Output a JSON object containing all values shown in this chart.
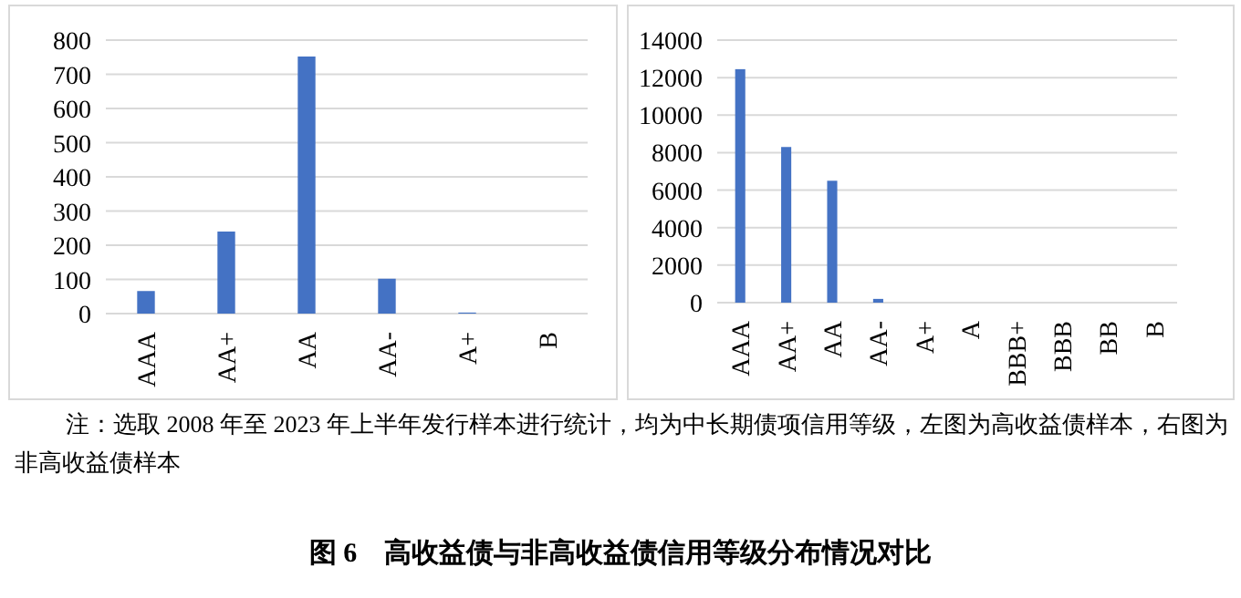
{
  "chart_data": [
    {
      "type": "bar",
      "categories": [
        "AAA",
        "AA+",
        "AA",
        "AA-",
        "A+",
        "B"
      ],
      "values": [
        66,
        240,
        752,
        102,
        3,
        0
      ],
      "color": "#4472c4",
      "ylim": [
        0,
        800
      ],
      "yticks": [
        0,
        100,
        200,
        300,
        400,
        500,
        600,
        700,
        800
      ],
      "grid": "y",
      "annotations": [
        "注：选取 2008 年至 2023 年上半年发行样本进行统计，均为中长期债项信用等级，左图为高收益债样本，右图为非高收益债样本",
        "图 6　高收益债与非高收益债信用等级分布情况对比"
      ]
    },
    {
      "type": "bar",
      "categories": [
        "AAA",
        "AA+",
        "AA",
        "AA-",
        "A+",
        "A",
        "BBB+",
        "BBB",
        "BB",
        "B"
      ],
      "values": [
        12450,
        8300,
        6500,
        200,
        0,
        0,
        0,
        0,
        0,
        0
      ],
      "color": "#4472c4",
      "ylim": [
        0,
        14000
      ],
      "yticks": [
        0,
        2000,
        4000,
        6000,
        8000,
        10000,
        12000,
        14000
      ],
      "grid": "y"
    }
  ]
}
